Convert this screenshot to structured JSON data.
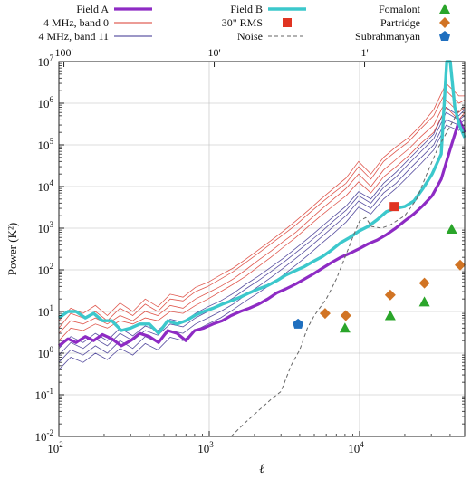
{
  "chart_data": {
    "type": "line",
    "xlabel": "ℓ",
    "ylabel": "Power (K²)",
    "xscale": "log",
    "yscale": "log",
    "xlim": [
      100,
      50000
    ],
    "ylim": [
      0.01,
      10000000
    ],
    "grid": true,
    "x_ticks": [
      {
        "value": 100,
        "base": "10",
        "exp": "2"
      },
      {
        "value": 1000,
        "base": "10",
        "exp": "3"
      },
      {
        "value": 10000,
        "base": "10",
        "exp": "4"
      }
    ],
    "y_ticks": [
      {
        "value": 0.01,
        "base": "10",
        "exp": "-2"
      },
      {
        "value": 0.1,
        "base": "10",
        "exp": "-1"
      },
      {
        "value": 1,
        "base": "10",
        "exp": "0"
      },
      {
        "value": 10,
        "base": "10",
        "exp": "1"
      },
      {
        "value": 100,
        "base": "10",
        "exp": "2"
      },
      {
        "value": 1000,
        "base": "10",
        "exp": "3"
      },
      {
        "value": 10000,
        "base": "10",
        "exp": "4"
      },
      {
        "value": 100000,
        "base": "10",
        "exp": "5"
      },
      {
        "value": 1000000,
        "base": "10",
        "exp": "6"
      },
      {
        "value": 10000000,
        "base": "10",
        "exp": "7"
      }
    ],
    "top_axis_ticks": [
      {
        "label": "100'",
        "ell": 108
      },
      {
        "label": "10'",
        "ell": 1080
      },
      {
        "label": "1'",
        "ell": 10800
      }
    ],
    "legend_position": "top",
    "legend": [
      {
        "label": "Field A",
        "kind": "line",
        "color": "#8e2bc4"
      },
      {
        "label": "4 MHz, band 0",
        "kind": "line",
        "color": "#d93a2e"
      },
      {
        "label": "4 MHz, band 11",
        "kind": "line",
        "color": "#3a2f8f"
      },
      {
        "label": "Field B",
        "kind": "line",
        "color": "#3cc8cc"
      },
      {
        "label": "30\" RMS",
        "kind": "square",
        "color": "#e03422"
      },
      {
        "label": "Noise",
        "kind": "dashed",
        "color": "#666666"
      },
      {
        "label": "Fomalont",
        "kind": "triangle",
        "color": "#2aa52a"
      },
      {
        "label": "Partridge",
        "kind": "diamond",
        "color": "#d17424"
      },
      {
        "label": "Subrahmanyan",
        "kind": "pentagon",
        "color": "#1f6fbf"
      }
    ],
    "series": [
      {
        "name": "Field A",
        "color": "#8e2bc4",
        "width": 3.2,
        "x": [
          100,
          115,
          130,
          150,
          170,
          195,
          225,
          260,
          300,
          345,
          400,
          460,
          530,
          610,
          700,
          800,
          920,
          1060,
          1220,
          1400,
          1610,
          1850,
          2130,
          2450,
          2820,
          3240,
          3730,
          4290,
          4930,
          5670,
          6520,
          7500,
          8620,
          9910,
          11400,
          13100,
          15100,
          17400,
          20000,
          23000,
          26400,
          30400,
          34900,
          40100,
          46100,
          50000
        ],
        "y": [
          1.5,
          2.2,
          1.8,
          2.5,
          2.0,
          2.8,
          2.2,
          1.5,
          2.0,
          3.0,
          2.5,
          1.8,
          3.5,
          3.0,
          2.0,
          3.5,
          4.0,
          5.0,
          6.0,
          8.0,
          10,
          12,
          15,
          20,
          28,
          35,
          45,
          60,
          80,
          110,
          150,
          200,
          250,
          320,
          420,
          520,
          700,
          1000,
          1500,
          2200,
          3500,
          6000,
          15000,
          80000,
          400000,
          200000
        ]
      },
      {
        "name": "Field B",
        "color": "#3cc8cc",
        "width": 3.4,
        "x": [
          100,
          115,
          130,
          150,
          170,
          195,
          225,
          260,
          300,
          345,
          400,
          460,
          530,
          610,
          700,
          800,
          920,
          1060,
          1220,
          1400,
          1610,
          1850,
          2130,
          2450,
          2820,
          3240,
          3730,
          4290,
          4930,
          5670,
          6520,
          7500,
          8620,
          9910,
          11400,
          13100,
          15100,
          17400,
          20000,
          23000,
          26400,
          30400,
          34900,
          38000,
          40100,
          43000,
          46100,
          50000
        ],
        "y": [
          7,
          10,
          10,
          7,
          9,
          6,
          6,
          3.5,
          4,
          5,
          5,
          3,
          6,
          5,
          6,
          8,
          10,
          12,
          15,
          18,
          22,
          28,
          35,
          42,
          55,
          75,
          95,
          120,
          160,
          210,
          300,
          450,
          600,
          850,
          1100,
          1600,
          2500,
          3000,
          3300,
          4500,
          9000,
          20000,
          60000,
          10000000,
          10000000,
          800000,
          300000,
          150000
        ]
      },
      {
        "name": "Noise",
        "color": "#666666",
        "width": 1.0,
        "dash": "4,3",
        "x": [
          1400,
          1700,
          2100,
          2600,
          3000,
          3500,
          4000,
          4500,
          5000,
          6000,
          7000,
          8000,
          9000,
          10000,
          11000,
          12000,
          14000,
          16000,
          20000,
          24000,
          28000,
          33000,
          38000,
          45000,
          50000
        ],
        "y": [
          0.01,
          0.02,
          0.04,
          0.08,
          0.12,
          0.5,
          1.2,
          4,
          8,
          20,
          60,
          200,
          600,
          1500,
          1800,
          1100,
          1000,
          1200,
          2000,
          5000,
          20000,
          80000,
          200000,
          600000,
          900000
        ]
      }
    ],
    "bundle_band0": [
      {
        "x": [
          100,
          120,
          145,
          175,
          210,
          255,
          310,
          375,
          455,
          550,
          670,
          810,
          980,
          1190,
          1440,
          1750,
          2120,
          2570,
          3110,
          3770,
          4570,
          5540,
          6710,
          8130,
          9850,
          11900,
          14450,
          17500,
          21200,
          25700,
          31100,
          37700,
          45700,
          50000
        ],
        "y": [
          4,
          9,
          7,
          10,
          6,
          12,
          8,
          15,
          10,
          20,
          18,
          30,
          40,
          60,
          90,
          150,
          250,
          420,
          700,
          1200,
          2200,
          4000,
          7000,
          12000,
          30000,
          15000,
          40000,
          70000,
          120000,
          250000,
          500000,
          2000000,
          1000000,
          1200000
        ]
      },
      {
        "x": [
          100,
          120,
          145,
          175,
          210,
          255,
          310,
          375,
          455,
          550,
          670,
          810,
          980,
          1190,
          1440,
          1750,
          2120,
          2570,
          3110,
          3770,
          4570,
          5540,
          6710,
          8130,
          9850,
          11900,
          14450,
          17500,
          21200,
          25700,
          31100,
          37700,
          45700,
          50000
        ],
        "y": [
          3,
          6,
          5,
          7,
          5,
          8,
          6,
          10,
          8,
          14,
          12,
          20,
          28,
          40,
          60,
          100,
          170,
          280,
          480,
          800,
          1500,
          2800,
          5000,
          9000,
          20000,
          10000,
          25000,
          45000,
          80000,
          160000,
          300000,
          1200000,
          600000,
          800000
        ]
      },
      {
        "x": [
          100,
          120,
          145,
          175,
          210,
          255,
          310,
          375,
          455,
          550,
          670,
          810,
          980,
          1190,
          1440,
          1750,
          2120,
          2570,
          3110,
          3770,
          4570,
          5540,
          6710,
          8130,
          9850,
          11900,
          14450,
          17500,
          21200,
          25700,
          31100,
          37700,
          45700,
          50000
        ],
        "y": [
          2,
          4,
          3.5,
          5,
          4,
          6,
          5,
          7,
          6,
          10,
          9,
          14,
          20,
          30,
          45,
          70,
          120,
          200,
          350,
          600,
          1100,
          2000,
          3500,
          6000,
          13000,
          7000,
          17000,
          30000,
          55000,
          110000,
          200000,
          800000,
          400000,
          600000
        ]
      },
      {
        "x": [
          100,
          120,
          145,
          175,
          210,
          255,
          310,
          375,
          455,
          550,
          670,
          810,
          980,
          1190,
          1440,
          1750,
          2120,
          2570,
          3110,
          3770,
          4570,
          5540,
          6710,
          8130,
          9850,
          11900,
          14450,
          17500,
          21200,
          25700,
          31100,
          37700,
          45700,
          50000
        ],
        "y": [
          6,
          12,
          9,
          14,
          8,
          16,
          10,
          20,
          13,
          26,
          22,
          38,
          50,
          75,
          110,
          180,
          300,
          500,
          850,
          1500,
          2700,
          5000,
          9000,
          16000,
          40000,
          20000,
          50000,
          90000,
          150000,
          300000,
          700000,
          3000000,
          1500000,
          1500000
        ]
      }
    ],
    "bundle_band11": [
      {
        "x": [
          100,
          120,
          145,
          175,
          210,
          255,
          310,
          375,
          455,
          550,
          670,
          810,
          980,
          1190,
          1440,
          1750,
          2120,
          2570,
          3110,
          3770,
          4570,
          5540,
          6710,
          8130,
          9850,
          11900,
          14450,
          17500,
          21200,
          25700,
          31100,
          37700,
          45700,
          50000
        ],
        "y": [
          0.6,
          1.2,
          0.9,
          1.5,
          1.0,
          2.0,
          1.3,
          2.5,
          1.8,
          3.5,
          3.0,
          5,
          7,
          10,
          15,
          25,
          40,
          65,
          110,
          190,
          330,
          600,
          1100,
          2000,
          4500,
          3000,
          7000,
          12000,
          25000,
          50000,
          100000,
          400000,
          300000,
          400000
        ]
      },
      {
        "x": [
          100,
          120,
          145,
          175,
          210,
          255,
          310,
          375,
          455,
          550,
          670,
          810,
          980,
          1190,
          1440,
          1750,
          2120,
          2570,
          3110,
          3770,
          4570,
          5540,
          6710,
          8130,
          9850,
          11900,
          14450,
          17500,
          21200,
          25700,
          31100,
          37700,
          45700,
          50000
        ],
        "y": [
          0.9,
          1.8,
          1.3,
          2.2,
          1.5,
          3.0,
          2.0,
          3.5,
          2.7,
          5,
          4.3,
          7,
          10,
          14,
          21,
          35,
          55,
          90,
          150,
          260,
          450,
          800,
          1500,
          2700,
          6000,
          4000,
          9500,
          17000,
          35000,
          70000,
          140000,
          600000,
          400000,
          500000
        ]
      },
      {
        "x": [
          100,
          120,
          145,
          175,
          210,
          255,
          310,
          375,
          455,
          550,
          670,
          810,
          980,
          1190,
          1440,
          1750,
          2120,
          2570,
          3110,
          3770,
          4570,
          5540,
          6710,
          8130,
          9850,
          11900,
          14450,
          17500,
          21200,
          25700,
          31100,
          37700,
          45700,
          50000
        ],
        "y": [
          0.4,
          0.8,
          0.6,
          1.0,
          0.7,
          1.3,
          0.9,
          1.7,
          1.2,
          2.4,
          2.0,
          3.5,
          5,
          7,
          11,
          18,
          28,
          45,
          75,
          130,
          230,
          420,
          750,
          1400,
          3200,
          2200,
          5000,
          9000,
          18000,
          36000,
          75000,
          300000,
          220000,
          300000
        ]
      },
      {
        "x": [
          100,
          120,
          145,
          175,
          210,
          255,
          310,
          375,
          455,
          550,
          670,
          810,
          980,
          1190,
          1440,
          1750,
          2120,
          2570,
          3110,
          3770,
          4570,
          5540,
          6710,
          8130,
          9850,
          11900,
          14450,
          17500,
          21200,
          25700,
          31100,
          37700,
          45700,
          50000
        ],
        "y": [
          1.3,
          2.5,
          1.8,
          3.0,
          2.0,
          4.0,
          2.6,
          4.5,
          3.5,
          6.5,
          5.5,
          9,
          13,
          18,
          27,
          45,
          70,
          115,
          190,
          330,
          580,
          1050,
          1900,
          3400,
          7500,
          5000,
          12000,
          22000,
          45000,
          90000,
          180000,
          800000,
          500000,
          700000
        ]
      }
    ],
    "points": {
      "rms_30": {
        "name": "30\" RMS",
        "color": "#e03422",
        "x": [
          17000
        ],
        "y": [
          3300
        ]
      },
      "fomalont": {
        "name": "Fomalont",
        "color": "#2aa52a",
        "x": [
          8000,
          16000,
          27000,
          41000
        ],
        "y": [
          4,
          8,
          17,
          950
        ]
      },
      "partridge": {
        "name": "Partridge",
        "color": "#d17424",
        "x": [
          5900,
          8100,
          16000,
          27000,
          50000
        ],
        "y": [
          9,
          8,
          25,
          48,
          130
        ]
      },
      "subrahmanyan": {
        "name": "Subrahmanyan",
        "color": "#1f6fbf",
        "x": [
          3900
        ],
        "y": [
          5
        ]
      }
    }
  }
}
